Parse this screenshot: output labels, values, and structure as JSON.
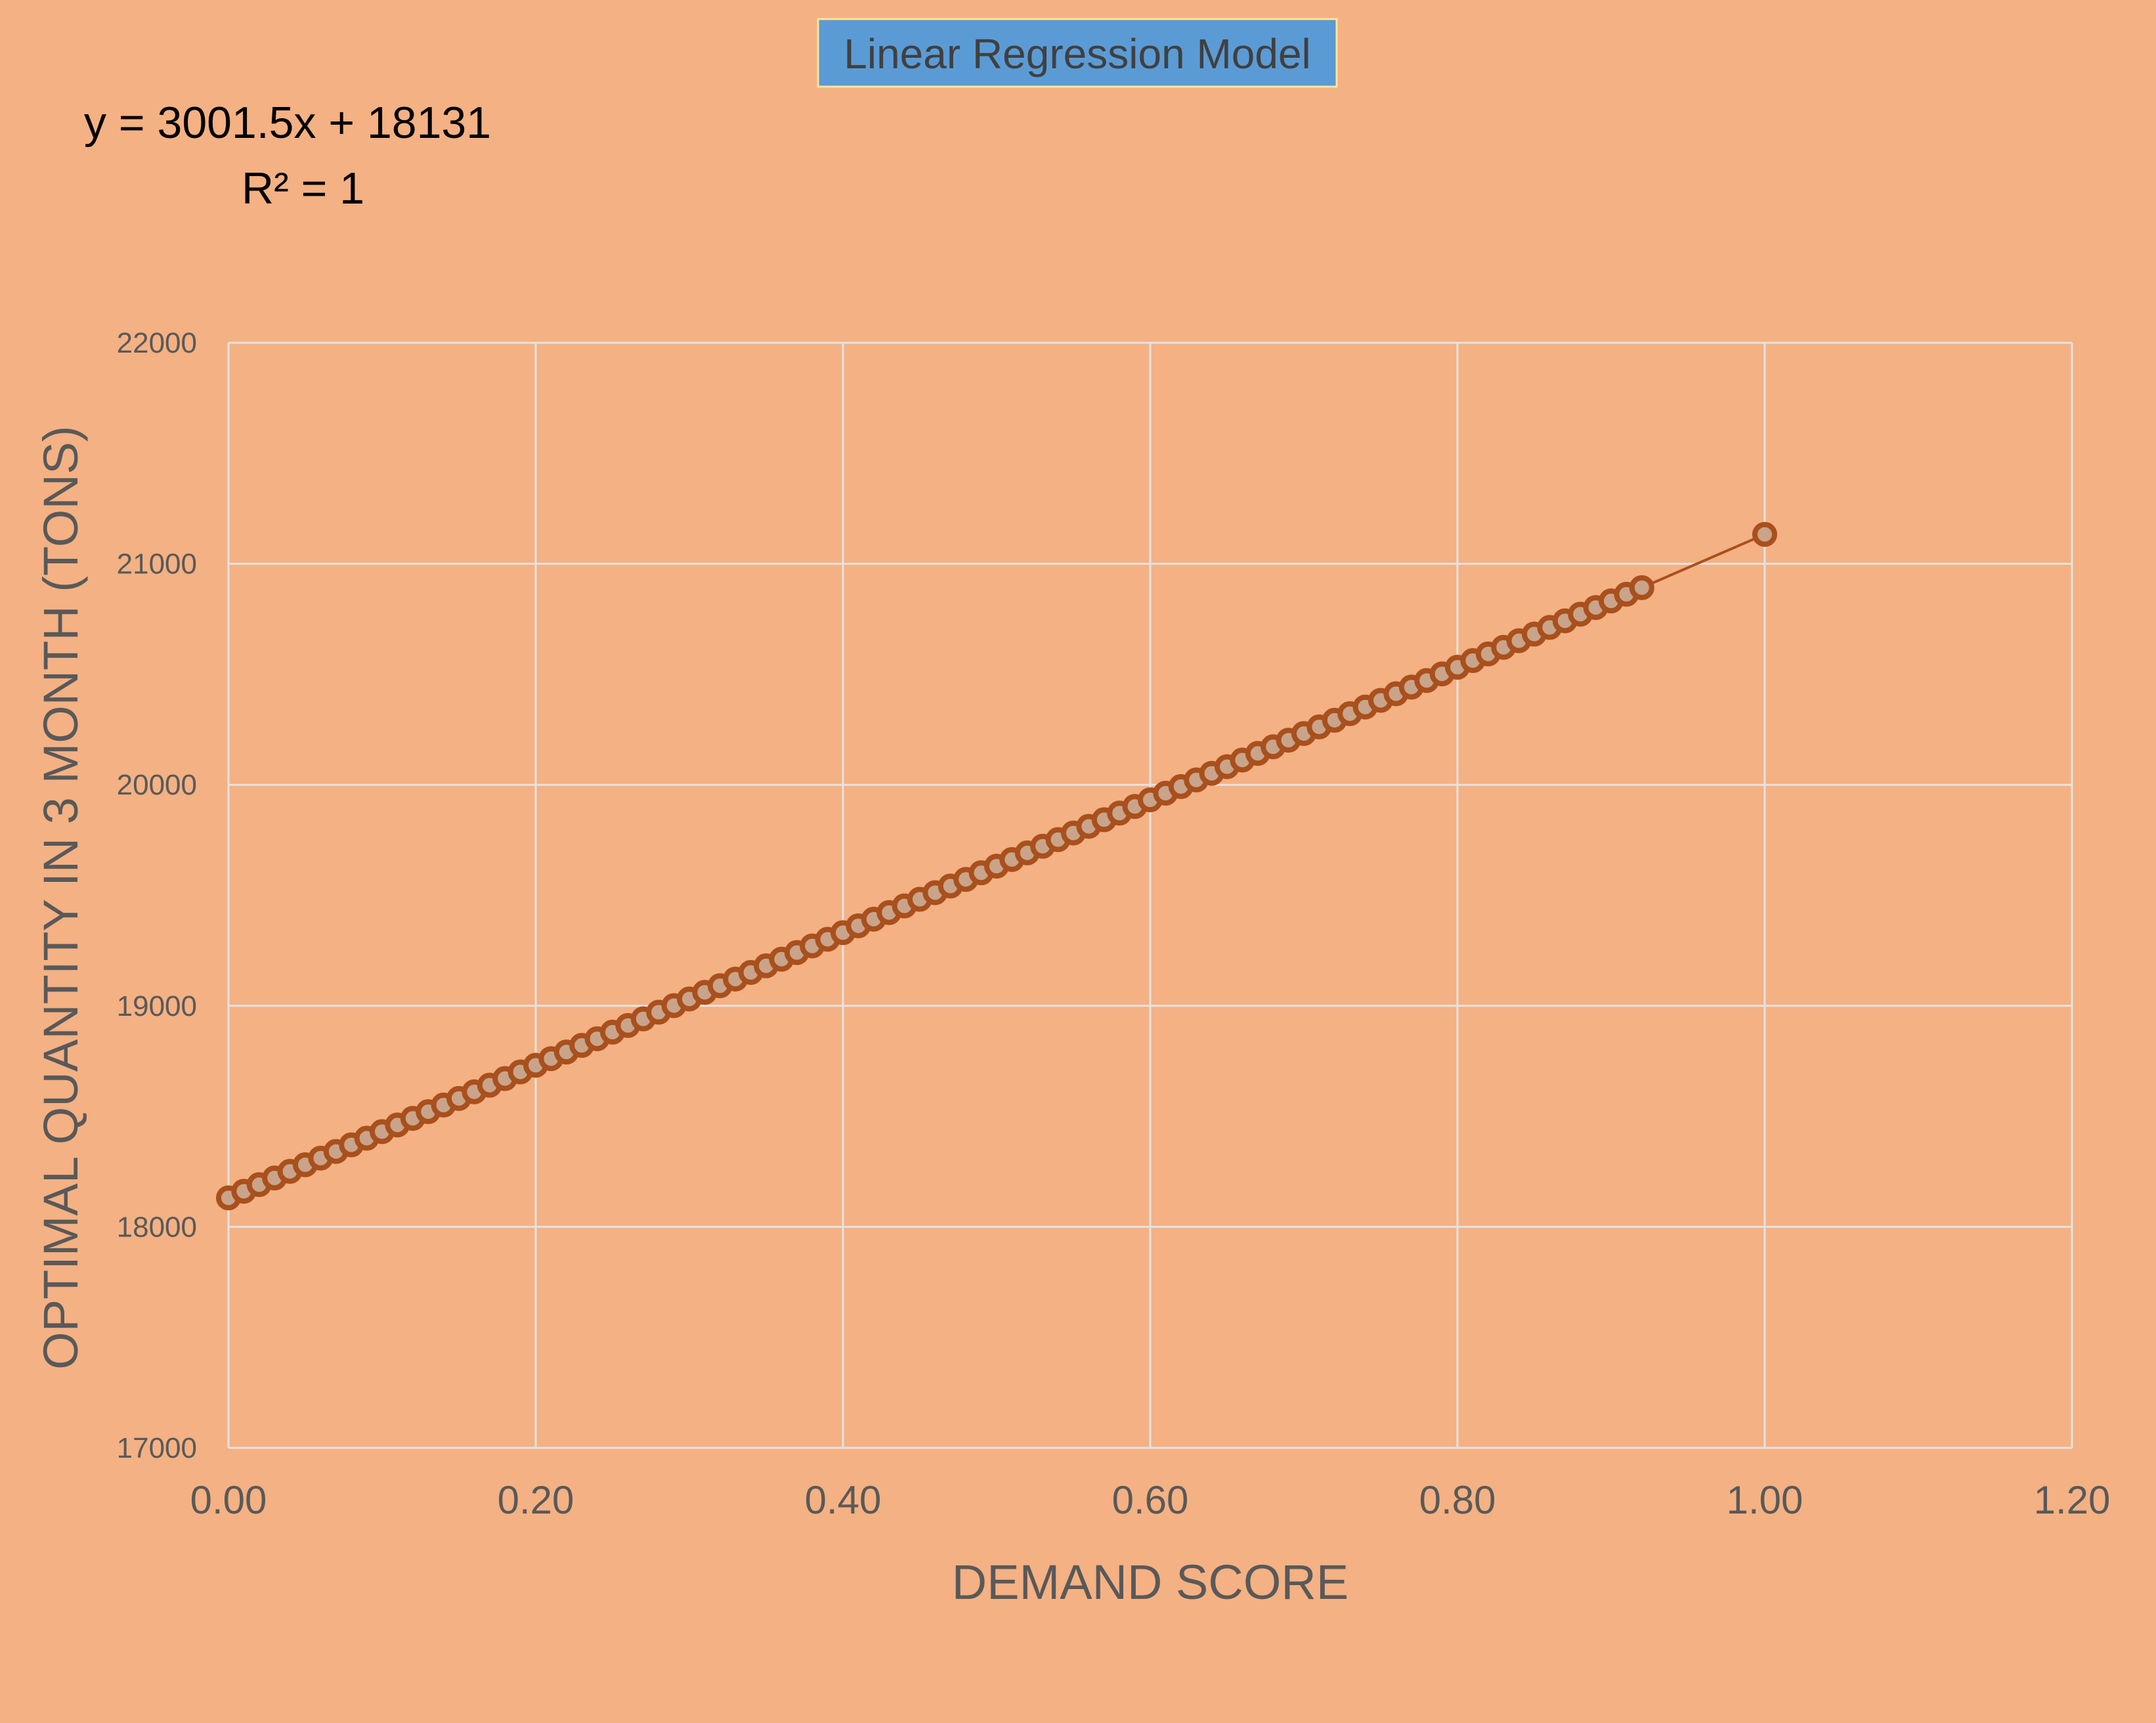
{
  "colors": {
    "background": "#f4b183",
    "gridline": "#e3e3e3",
    "series": "#a9501d",
    "title_box_fill": "#5b9bd5",
    "title_box_border": "#ffe699",
    "tick_text": "#595959"
  },
  "chart_data": {
    "type": "scatter",
    "title": "Linear Regression Model",
    "xlabel": "DEMAND SCORE",
    "ylabel": "OPTIMAL QUANTITY IN 3 MONTH (TONS)",
    "xlim": [
      0,
      1.2
    ],
    "ylim": [
      17000,
      22000
    ],
    "x_ticks": [
      "0.00",
      "0.20",
      "0.40",
      "0.60",
      "0.80",
      "1.00",
      "1.20"
    ],
    "y_ticks": [
      "17000",
      "18000",
      "19000",
      "20000",
      "21000",
      "22000"
    ],
    "grid": true,
    "legend": "none",
    "trendline": {
      "equation": "y = 3001.5x + 18131",
      "r_squared": "R² = 1",
      "slope": 3001.5,
      "intercept": 18131
    },
    "series": [
      {
        "x": [
          0.0,
          0.01,
          0.02,
          0.03,
          0.04,
          0.05,
          0.06,
          0.07,
          0.08,
          0.09,
          0.1,
          0.11,
          0.12,
          0.13,
          0.14,
          0.15,
          0.16,
          0.17,
          0.18,
          0.19,
          0.2,
          0.21,
          0.22,
          0.23,
          0.24,
          0.25,
          0.26,
          0.27,
          0.28,
          0.29,
          0.3,
          0.31,
          0.32,
          0.33,
          0.34,
          0.35,
          0.36,
          0.37,
          0.38,
          0.39,
          0.4,
          0.41,
          0.42,
          0.43,
          0.44,
          0.45,
          0.46,
          0.47,
          0.48,
          0.49,
          0.5,
          0.51,
          0.52,
          0.53,
          0.54,
          0.55,
          0.56,
          0.57,
          0.58,
          0.59,
          0.6,
          0.61,
          0.62,
          0.63,
          0.64,
          0.65,
          0.66,
          0.67,
          0.68,
          0.69,
          0.7,
          0.71,
          0.72,
          0.73,
          0.74,
          0.75,
          0.76,
          0.77,
          0.78,
          0.79,
          0.8,
          0.81,
          0.82,
          0.83,
          0.84,
          0.85,
          0.86,
          0.87,
          0.88,
          0.89,
          0.9,
          0.91,
          0.92,
          1.0
        ],
        "y": [
          18131,
          18161,
          18191,
          18221,
          18251,
          18281,
          18311,
          18341,
          18371,
          18401,
          18431,
          18461,
          18491,
          18521,
          18551,
          18581,
          18611,
          18641,
          18671,
          18701,
          18731,
          18761,
          18791,
          18821,
          18851,
          18881,
          18911,
          18941,
          18971,
          19001,
          19031,
          19061,
          19091,
          19121,
          19151,
          19181,
          19211,
          19241,
          19271,
          19301,
          19331,
          19362,
          19392,
          19422,
          19452,
          19482,
          19512,
          19542,
          19572,
          19602,
          19632,
          19662,
          19692,
          19722,
          19752,
          19782,
          19812,
          19842,
          19872,
          19902,
          19932,
          19962,
          19992,
          20022,
          20052,
          20082,
          20112,
          20142,
          20172,
          20202,
          20232,
          20262,
          20292,
          20322,
          20352,
          20382,
          20412,
          20442,
          20472,
          20502,
          20532,
          20562,
          20592,
          20622,
          20652,
          20682,
          20712,
          20742,
          20772,
          20802,
          20832,
          20862,
          20892,
          21133
        ]
      }
    ]
  }
}
